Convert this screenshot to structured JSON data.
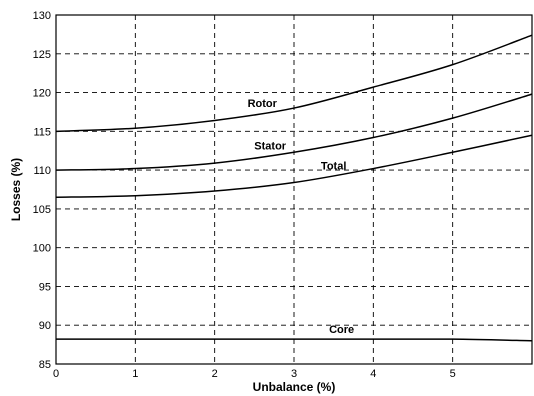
{
  "chart_data": {
    "type": "line",
    "title": "",
    "xlabel": "Unbalance (%)",
    "ylabel": "Losses (%)",
    "xlim": [
      0,
      6
    ],
    "ylim": [
      85,
      130
    ],
    "xticks": [
      0,
      1,
      2,
      3,
      4,
      5
    ],
    "yticks": [
      85,
      90,
      95,
      100,
      105,
      110,
      115,
      120,
      125,
      130
    ],
    "grid": true,
    "series": [
      {
        "name": "Rotor",
        "x": [
          0,
          1,
          2,
          3,
          4,
          5,
          6
        ],
        "y": [
          115.0,
          115.4,
          116.4,
          118.0,
          120.7,
          123.6,
          127.4
        ]
      },
      {
        "name": "Stator",
        "x": [
          0,
          1,
          2,
          3,
          4,
          5,
          6
        ],
        "y": [
          110.0,
          110.2,
          110.9,
          112.3,
          114.2,
          116.7,
          119.8
        ]
      },
      {
        "name": "Total",
        "x": [
          0,
          1,
          2,
          3,
          4,
          5,
          6
        ],
        "y": [
          106.5,
          106.7,
          107.3,
          108.4,
          110.2,
          112.3,
          114.5
        ]
      },
      {
        "name": "Core",
        "x": [
          0,
          1,
          2,
          3,
          4,
          5,
          6
        ],
        "y": [
          88.2,
          88.2,
          88.2,
          88.2,
          88.2,
          88.2,
          88.0
        ]
      }
    ],
    "annotations": [
      {
        "text": "Rotor",
        "series": "Rotor",
        "x": 2.6
      },
      {
        "text": "Stator",
        "series": "Stator",
        "x": 2.7
      },
      {
        "text": "Total",
        "series": "Total",
        "x": 3.5
      },
      {
        "text": "Core",
        "series": "Core",
        "x": 3.6
      }
    ]
  }
}
